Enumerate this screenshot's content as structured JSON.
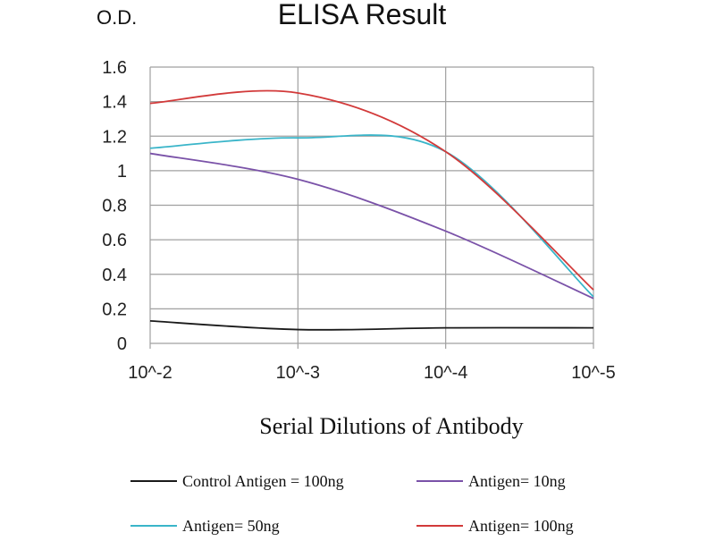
{
  "chart_data": {
    "type": "line",
    "title": "ELISA Result",
    "ylabel": "O.D.",
    "xlabel": "Serial Dilutions of Antibody",
    "categories": [
      "10^-2",
      "10^-3",
      "10^-4",
      "10^-5"
    ],
    "ylim": [
      0,
      1.6
    ],
    "yticks": [
      "0",
      "0.2",
      "0.4",
      "0.6",
      "0.8",
      "1",
      "1.2",
      "1.4",
      "1.6"
    ],
    "grid": true,
    "legend_position": "bottom",
    "series": [
      {
        "name": "Control Antigen = 100ng",
        "color": "#1a1a1a",
        "values": [
          0.13,
          0.08,
          0.09,
          0.09
        ]
      },
      {
        "name": "Antigen= 10ng",
        "color": "#7a52a8",
        "values": [
          1.1,
          0.95,
          0.65,
          0.26
        ]
      },
      {
        "name": "Antigen= 50ng",
        "color": "#3ab5c9",
        "values": [
          1.13,
          1.19,
          1.11,
          0.27
        ]
      },
      {
        "name": "Antigen= 100ng",
        "color": "#d23a3a",
        "values": [
          1.39,
          1.45,
          1.11,
          0.31
        ]
      }
    ]
  }
}
